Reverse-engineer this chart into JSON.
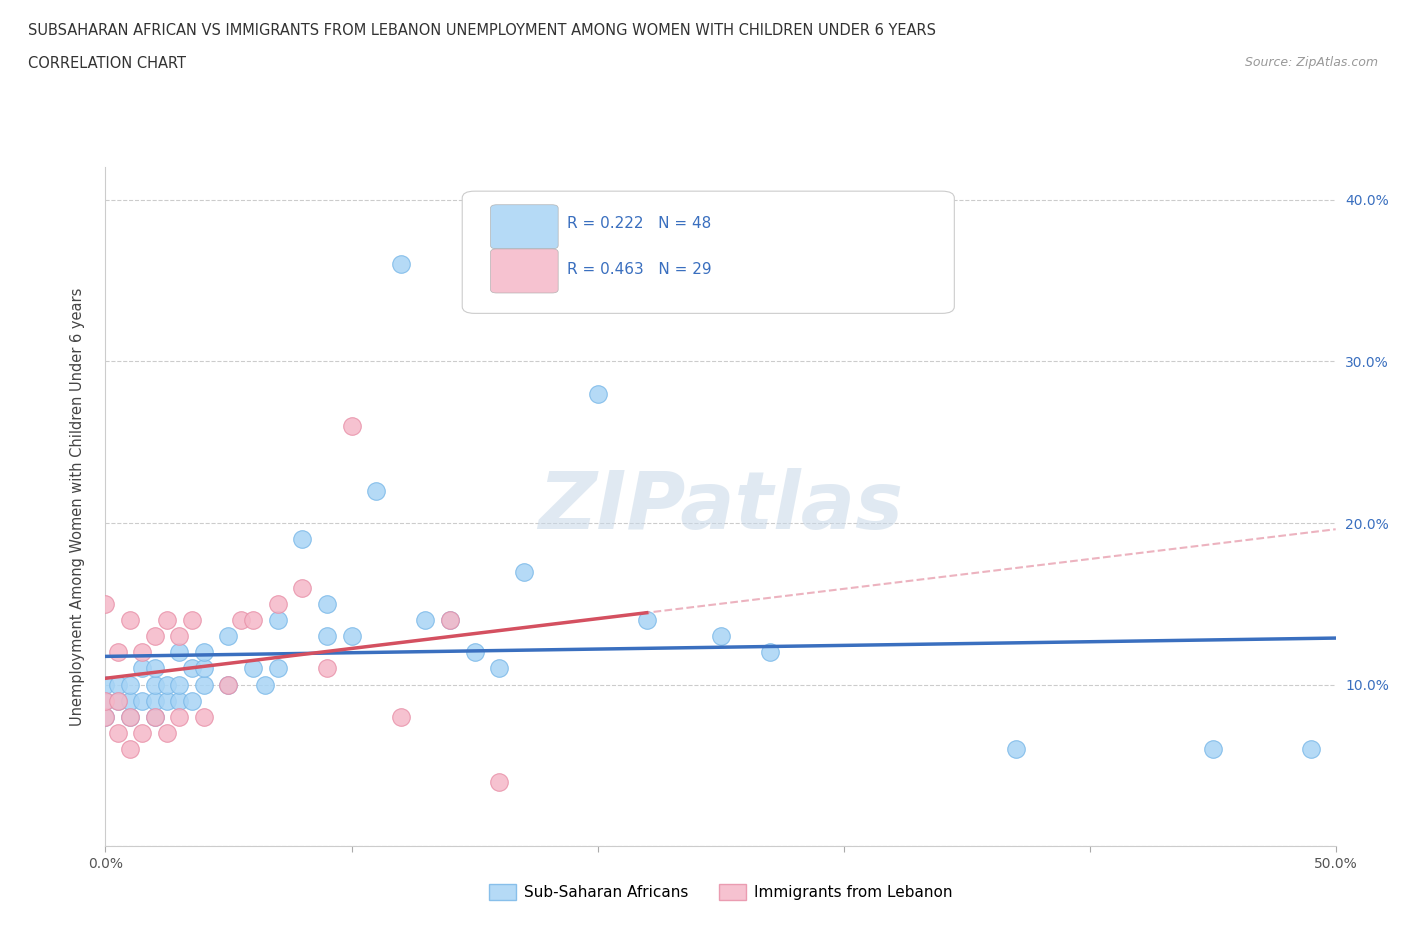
{
  "title_line1": "SUBSAHARAN AFRICAN VS IMMIGRANTS FROM LEBANON UNEMPLOYMENT AMONG WOMEN WITH CHILDREN UNDER 6 YEARS",
  "title_line2": "CORRELATION CHART",
  "source": "Source: ZipAtlas.com",
  "ylabel": "Unemployment Among Women with Children Under 6 years",
  "watermark": "ZIPatlas",
  "xlim": [
    0.0,
    0.5
  ],
  "ylim": [
    0.0,
    0.42
  ],
  "xticks": [
    0.0,
    0.1,
    0.2,
    0.3,
    0.4,
    0.5
  ],
  "xticklabels": [
    "0.0%",
    "",
    "",
    "",
    "",
    "50.0%"
  ],
  "yticks_right": [
    0.1,
    0.2,
    0.3,
    0.4
  ],
  "yticklabels_right": [
    "10.0%",
    "20.0%",
    "30.0%",
    "40.0%"
  ],
  "blue_R": 0.222,
  "blue_N": 48,
  "pink_R": 0.463,
  "pink_N": 29,
  "blue_color": "#a8d4f5",
  "blue_edge_color": "#7ab8e8",
  "pink_color": "#f5b8c8",
  "pink_edge_color": "#e890a8",
  "blue_line_color": "#3a6fbf",
  "pink_line_color": "#d45060",
  "pink_dash_color": "#e8a0b0",
  "legend1_label": "Sub-Saharan Africans",
  "legend2_label": "Immigrants from Lebanon",
  "blue_scatter_x": [
    0.0,
    0.0,
    0.0,
    0.005,
    0.005,
    0.01,
    0.01,
    0.01,
    0.015,
    0.015,
    0.02,
    0.02,
    0.02,
    0.02,
    0.025,
    0.025,
    0.03,
    0.03,
    0.03,
    0.035,
    0.035,
    0.04,
    0.04,
    0.04,
    0.05,
    0.05,
    0.06,
    0.065,
    0.07,
    0.07,
    0.08,
    0.09,
    0.09,
    0.1,
    0.11,
    0.12,
    0.13,
    0.14,
    0.15,
    0.16,
    0.17,
    0.2,
    0.22,
    0.25,
    0.27,
    0.37,
    0.45,
    0.49
  ],
  "blue_scatter_y": [
    0.08,
    0.09,
    0.1,
    0.09,
    0.1,
    0.08,
    0.09,
    0.1,
    0.09,
    0.11,
    0.08,
    0.09,
    0.1,
    0.11,
    0.09,
    0.1,
    0.09,
    0.1,
    0.12,
    0.09,
    0.11,
    0.1,
    0.11,
    0.12,
    0.1,
    0.13,
    0.11,
    0.1,
    0.11,
    0.14,
    0.19,
    0.13,
    0.15,
    0.13,
    0.22,
    0.36,
    0.14,
    0.14,
    0.12,
    0.11,
    0.17,
    0.28,
    0.14,
    0.13,
    0.12,
    0.06,
    0.06,
    0.06
  ],
  "pink_scatter_x": [
    0.0,
    0.0,
    0.0,
    0.005,
    0.005,
    0.005,
    0.01,
    0.01,
    0.01,
    0.015,
    0.015,
    0.02,
    0.02,
    0.025,
    0.025,
    0.03,
    0.03,
    0.035,
    0.04,
    0.05,
    0.055,
    0.06,
    0.07,
    0.08,
    0.09,
    0.1,
    0.12,
    0.14,
    0.16
  ],
  "pink_scatter_y": [
    0.08,
    0.09,
    0.15,
    0.07,
    0.09,
    0.12,
    0.06,
    0.08,
    0.14,
    0.07,
    0.12,
    0.08,
    0.13,
    0.07,
    0.14,
    0.08,
    0.13,
    0.14,
    0.08,
    0.1,
    0.14,
    0.14,
    0.15,
    0.16,
    0.11,
    0.26,
    0.08,
    0.14,
    0.04
  ]
}
